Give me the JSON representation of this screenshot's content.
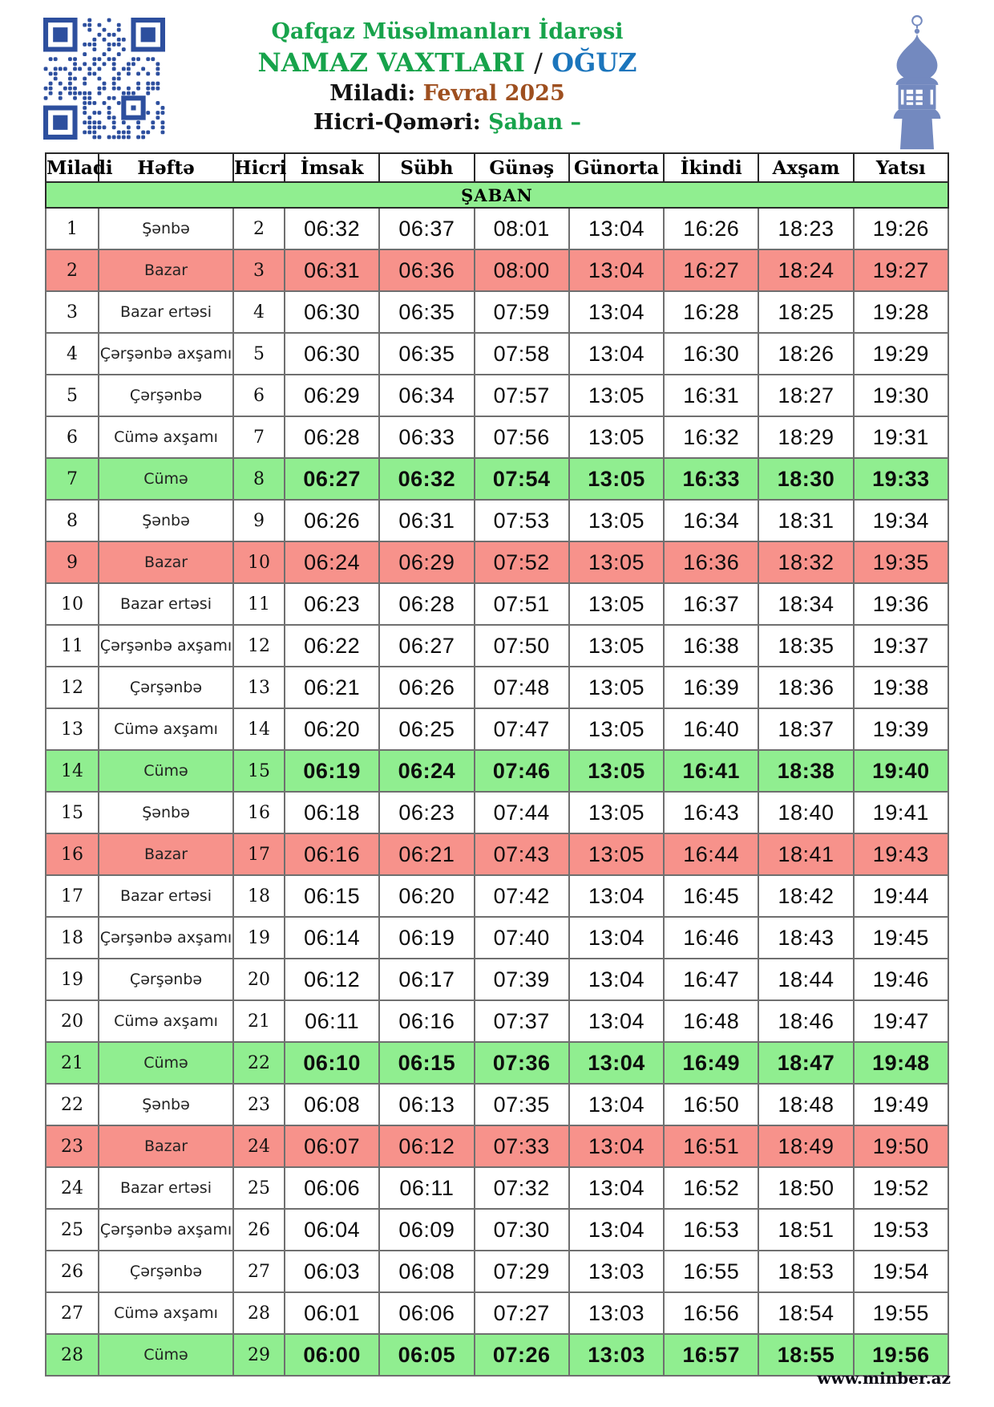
{
  "header": {
    "organization": "Qafqaz Müsəlmanları İdarəsi",
    "title": "NAMAZ VAXTLARI",
    "title_separator": "/",
    "city": "OĞUZ",
    "miladi_label": "Miladi:",
    "miladi_value": "Fevral 2025",
    "hicri_label": "Hicri-Qəməri:",
    "hicri_value": "Şaban –"
  },
  "icons": {
    "qr_code": "qr-code",
    "minaret": "minaret-icon"
  },
  "colors": {
    "title_green": "#17a34b",
    "city_blue": "#1b75bc",
    "date_brown": "#9e4f1f",
    "row_red": "#f7928b",
    "row_green": "#90ee90",
    "banner_green": "#90ee90",
    "qr_blue": "#2d4f9e",
    "minaret_blue": "#7389bf"
  },
  "table": {
    "columns": [
      "Miladi",
      "Həftə",
      "Hicri",
      "İmsak",
      "Sübh",
      "Günəş",
      "Günorta",
      "İkindi",
      "Axşam",
      "Yatsı"
    ],
    "month_banner": "ŞABAN",
    "rows": [
      {
        "miladi": "1",
        "hefte": "Şənbə",
        "hicri": "2",
        "times": [
          "06:32",
          "06:37",
          "08:01",
          "13:04",
          "16:26",
          "18:23",
          "19:26"
        ],
        "highlight": "none"
      },
      {
        "miladi": "2",
        "hefte": "Bazar",
        "hicri": "3",
        "times": [
          "06:31",
          "06:36",
          "08:00",
          "13:04",
          "16:27",
          "18:24",
          "19:27"
        ],
        "highlight": "red"
      },
      {
        "miladi": "3",
        "hefte": "Bazar ertəsi",
        "hicri": "4",
        "times": [
          "06:30",
          "06:35",
          "07:59",
          "13:04",
          "16:28",
          "18:25",
          "19:28"
        ],
        "highlight": "none"
      },
      {
        "miladi": "4",
        "hefte": "Çərşənbə axşamı",
        "hicri": "5",
        "times": [
          "06:30",
          "06:35",
          "07:58",
          "13:04",
          "16:30",
          "18:26",
          "19:29"
        ],
        "highlight": "none"
      },
      {
        "miladi": "5",
        "hefte": "Çərşənbə",
        "hicri": "6",
        "times": [
          "06:29",
          "06:34",
          "07:57",
          "13:05",
          "16:31",
          "18:27",
          "19:30"
        ],
        "highlight": "none"
      },
      {
        "miladi": "6",
        "hefte": "Cümə axşamı",
        "hicri": "7",
        "times": [
          "06:28",
          "06:33",
          "07:56",
          "13:05",
          "16:32",
          "18:29",
          "19:31"
        ],
        "highlight": "none"
      },
      {
        "miladi": "7",
        "hefte": "Cümə",
        "hicri": "8",
        "times": [
          "06:27",
          "06:32",
          "07:54",
          "13:05",
          "16:33",
          "18:30",
          "19:33"
        ],
        "highlight": "green"
      },
      {
        "miladi": "8",
        "hefte": "Şənbə",
        "hicri": "9",
        "times": [
          "06:26",
          "06:31",
          "07:53",
          "13:05",
          "16:34",
          "18:31",
          "19:34"
        ],
        "highlight": "none"
      },
      {
        "miladi": "9",
        "hefte": "Bazar",
        "hicri": "10",
        "times": [
          "06:24",
          "06:29",
          "07:52",
          "13:05",
          "16:36",
          "18:32",
          "19:35"
        ],
        "highlight": "red"
      },
      {
        "miladi": "10",
        "hefte": "Bazar ertəsi",
        "hicri": "11",
        "times": [
          "06:23",
          "06:28",
          "07:51",
          "13:05",
          "16:37",
          "18:34",
          "19:36"
        ],
        "highlight": "none"
      },
      {
        "miladi": "11",
        "hefte": "Çərşənbə axşamı",
        "hicri": "12",
        "times": [
          "06:22",
          "06:27",
          "07:50",
          "13:05",
          "16:38",
          "18:35",
          "19:37"
        ],
        "highlight": "none"
      },
      {
        "miladi": "12",
        "hefte": "Çərşənbə",
        "hicri": "13",
        "times": [
          "06:21",
          "06:26",
          "07:48",
          "13:05",
          "16:39",
          "18:36",
          "19:38"
        ],
        "highlight": "none"
      },
      {
        "miladi": "13",
        "hefte": "Cümə axşamı",
        "hicri": "14",
        "times": [
          "06:20",
          "06:25",
          "07:47",
          "13:05",
          "16:40",
          "18:37",
          "19:39"
        ],
        "highlight": "none"
      },
      {
        "miladi": "14",
        "hefte": "Cümə",
        "hicri": "15",
        "times": [
          "06:19",
          "06:24",
          "07:46",
          "13:05",
          "16:41",
          "18:38",
          "19:40"
        ],
        "highlight": "green"
      },
      {
        "miladi": "15",
        "hefte": "Şənbə",
        "hicri": "16",
        "times": [
          "06:18",
          "06:23",
          "07:44",
          "13:05",
          "16:43",
          "18:40",
          "19:41"
        ],
        "highlight": "none"
      },
      {
        "miladi": "16",
        "hefte": "Bazar",
        "hicri": "17",
        "times": [
          "06:16",
          "06:21",
          "07:43",
          "13:05",
          "16:44",
          "18:41",
          "19:43"
        ],
        "highlight": "red"
      },
      {
        "miladi": "17",
        "hefte": "Bazar ertəsi",
        "hicri": "18",
        "times": [
          "06:15",
          "06:20",
          "07:42",
          "13:04",
          "16:45",
          "18:42",
          "19:44"
        ],
        "highlight": "none"
      },
      {
        "miladi": "18",
        "hefte": "Çərşənbə axşamı",
        "hicri": "19",
        "times": [
          "06:14",
          "06:19",
          "07:40",
          "13:04",
          "16:46",
          "18:43",
          "19:45"
        ],
        "highlight": "none"
      },
      {
        "miladi": "19",
        "hefte": "Çərşənbə",
        "hicri": "20",
        "times": [
          "06:12",
          "06:17",
          "07:39",
          "13:04",
          "16:47",
          "18:44",
          "19:46"
        ],
        "highlight": "none"
      },
      {
        "miladi": "20",
        "hefte": "Cümə axşamı",
        "hicri": "21",
        "times": [
          "06:11",
          "06:16",
          "07:37",
          "13:04",
          "16:48",
          "18:46",
          "19:47"
        ],
        "highlight": "none"
      },
      {
        "miladi": "21",
        "hefte": "Cümə",
        "hicri": "22",
        "times": [
          "06:10",
          "06:15",
          "07:36",
          "13:04",
          "16:49",
          "18:47",
          "19:48"
        ],
        "highlight": "green"
      },
      {
        "miladi": "22",
        "hefte": "Şənbə",
        "hicri": "23",
        "times": [
          "06:08",
          "06:13",
          "07:35",
          "13:04",
          "16:50",
          "18:48",
          "19:49"
        ],
        "highlight": "none"
      },
      {
        "miladi": "23",
        "hefte": "Bazar",
        "hicri": "24",
        "times": [
          "06:07",
          "06:12",
          "07:33",
          "13:04",
          "16:51",
          "18:49",
          "19:50"
        ],
        "highlight": "red"
      },
      {
        "miladi": "24",
        "hefte": "Bazar ertəsi",
        "hicri": "25",
        "times": [
          "06:06",
          "06:11",
          "07:32",
          "13:04",
          "16:52",
          "18:50",
          "19:52"
        ],
        "highlight": "none"
      },
      {
        "miladi": "25",
        "hefte": "Çərşənbə axşamı",
        "hicri": "26",
        "times": [
          "06:04",
          "06:09",
          "07:30",
          "13:04",
          "16:53",
          "18:51",
          "19:53"
        ],
        "highlight": "none"
      },
      {
        "miladi": "26",
        "hefte": "Çərşənbə",
        "hicri": "27",
        "times": [
          "06:03",
          "06:08",
          "07:29",
          "13:03",
          "16:55",
          "18:53",
          "19:54"
        ],
        "highlight": "none"
      },
      {
        "miladi": "27",
        "hefte": "Cümə axşamı",
        "hicri": "28",
        "times": [
          "06:01",
          "06:06",
          "07:27",
          "13:03",
          "16:56",
          "18:54",
          "19:55"
        ],
        "highlight": "none"
      },
      {
        "miladi": "28",
        "hefte": "Cümə",
        "hicri": "29",
        "times": [
          "06:00",
          "06:05",
          "07:26",
          "13:03",
          "16:57",
          "18:55",
          "19:56"
        ],
        "highlight": "green"
      }
    ]
  },
  "footer": {
    "website": "www.minber.az"
  }
}
